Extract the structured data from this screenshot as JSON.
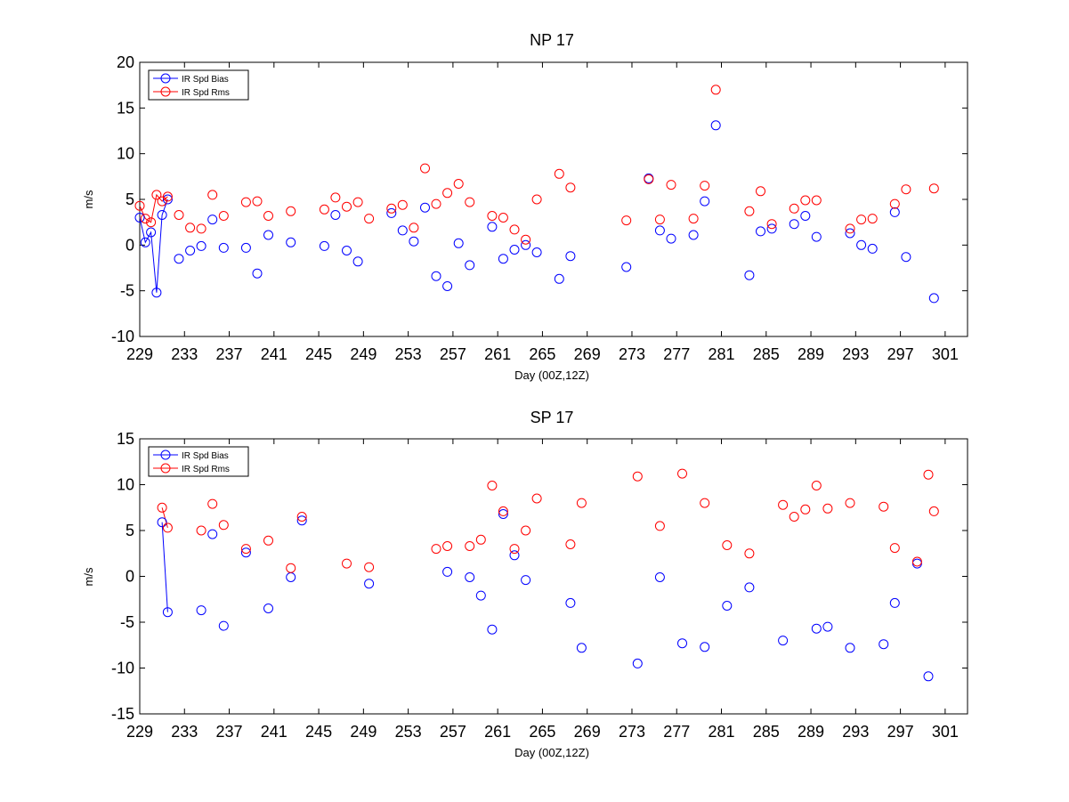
{
  "chart_data": [
    {
      "type": "scatter",
      "title": "NP 17",
      "xlabel": "Day (00Z,12Z)",
      "ylabel": "m/s",
      "xlim": [
        229,
        303
      ],
      "ylim": [
        -10,
        20
      ],
      "xticks": [
        229,
        233,
        237,
        241,
        245,
        249,
        253,
        257,
        261,
        265,
        269,
        273,
        277,
        281,
        285,
        289,
        293,
        297,
        301
      ],
      "yticks": [
        -10,
        -5,
        0,
        5,
        10,
        15,
        20
      ],
      "legend_position": "top-left",
      "grid": false,
      "series": [
        {
          "name": "IR Spd Bias",
          "color": "#0000ff",
          "points": [
            [
              229,
              3
            ],
            [
              229.5,
              0.3
            ],
            [
              230,
              1.4
            ],
            [
              230.5,
              -5.2
            ],
            [
              231,
              3.3
            ],
            [
              231.5,
              5.0
            ],
            [
              232.5,
              -1.5
            ],
            [
              233.5,
              -0.6
            ],
            [
              234.5,
              -0.1
            ],
            [
              235.5,
              2.8
            ],
            [
              236.5,
              -0.3
            ],
            [
              238.5,
              -0.3
            ],
            [
              239.5,
              -3.1
            ],
            [
              240.5,
              1.1
            ],
            [
              242.5,
              0.3
            ],
            [
              245.5,
              -0.1
            ],
            [
              246.5,
              3.3
            ],
            [
              247.5,
              -0.6
            ],
            [
              248.5,
              -1.8
            ],
            [
              251.5,
              3.5
            ],
            [
              252.5,
              1.6
            ],
            [
              253.5,
              0.4
            ],
            [
              254.5,
              4.1
            ],
            [
              255.5,
              -3.4
            ],
            [
              256.5,
              -4.5
            ],
            [
              257.5,
              0.2
            ],
            [
              258.5,
              -2.2
            ],
            [
              260.5,
              2.0
            ],
            [
              261.5,
              -1.5
            ],
            [
              262.5,
              -0.5
            ],
            [
              263.5,
              0
            ],
            [
              264.5,
              -0.8
            ],
            [
              266.5,
              -3.7
            ],
            [
              267.5,
              -1.2
            ],
            [
              272.5,
              -2.4
            ],
            [
              274.5,
              7.3
            ],
            [
              275.5,
              1.6
            ],
            [
              276.5,
              0.7
            ],
            [
              278.5,
              1.1
            ],
            [
              279.5,
              4.8
            ],
            [
              280.5,
              13.1
            ],
            [
              283.5,
              -3.3
            ],
            [
              284.5,
              1.5
            ],
            [
              285.5,
              1.8
            ],
            [
              287.5,
              2.3
            ],
            [
              288.5,
              3.2
            ],
            [
              289.5,
              0.9
            ],
            [
              292.5,
              1.3
            ],
            [
              293.5,
              0
            ],
            [
              294.5,
              -0.4
            ],
            [
              296.5,
              3.6
            ],
            [
              297.5,
              -1.3
            ],
            [
              300,
              -5.8
            ]
          ],
          "line_points": [
            [
              229,
              3
            ],
            [
              229.5,
              0.3
            ],
            [
              230,
              1.4
            ],
            [
              230.5,
              -5.2
            ],
            [
              231,
              3.3
            ],
            [
              231.5,
              5.0
            ]
          ]
        },
        {
          "name": "IR Spd Rms",
          "color": "#ff0000",
          "points": [
            [
              229,
              4.3
            ],
            [
              229.5,
              2.9
            ],
            [
              230,
              2.5
            ],
            [
              230.5,
              5.5
            ],
            [
              231,
              4.8
            ],
            [
              231.5,
              5.3
            ],
            [
              232.5,
              3.3
            ],
            [
              233.5,
              1.9
            ],
            [
              234.5,
              1.8
            ],
            [
              235.5,
              5.5
            ],
            [
              236.5,
              3.2
            ],
            [
              238.5,
              4.7
            ],
            [
              239.5,
              4.8
            ],
            [
              240.5,
              3.2
            ],
            [
              242.5,
              3.7
            ],
            [
              245.5,
              3.9
            ],
            [
              246.5,
              5.2
            ],
            [
              247.5,
              4.2
            ],
            [
              248.5,
              4.7
            ],
            [
              249.5,
              2.9
            ],
            [
              251.5,
              4.0
            ],
            [
              252.5,
              4.4
            ],
            [
              253.5,
              1.9
            ],
            [
              254.5,
              8.4
            ],
            [
              255.5,
              4.5
            ],
            [
              256.5,
              5.7
            ],
            [
              257.5,
              6.7
            ],
            [
              258.5,
              4.7
            ],
            [
              260.5,
              3.2
            ],
            [
              261.5,
              3.0
            ],
            [
              262.5,
              1.7
            ],
            [
              263.5,
              0.6
            ],
            [
              264.5,
              5.0
            ],
            [
              266.5,
              7.8
            ],
            [
              267.5,
              6.3
            ],
            [
              272.5,
              2.7
            ],
            [
              274.5,
              7.2
            ],
            [
              275.5,
              2.8
            ],
            [
              276.5,
              6.6
            ],
            [
              278.5,
              2.9
            ],
            [
              279.5,
              6.5
            ],
            [
              280.5,
              17.0
            ],
            [
              283.5,
              3.7
            ],
            [
              284.5,
              5.9
            ],
            [
              285.5,
              2.3
            ],
            [
              287.5,
              4.0
            ],
            [
              288.5,
              4.9
            ],
            [
              289.5,
              4.9
            ],
            [
              292.5,
              1.8
            ],
            [
              293.5,
              2.8
            ],
            [
              294.5,
              2.9
            ],
            [
              296.5,
              4.5
            ],
            [
              297.5,
              6.1
            ],
            [
              300,
              6.2
            ]
          ],
          "line_points": [
            [
              229,
              4.3
            ],
            [
              229.5,
              2.9
            ],
            [
              230,
              2.5
            ],
            [
              230.5,
              5.5
            ],
            [
              231,
              4.8
            ],
            [
              231.5,
              5.3
            ]
          ]
        }
      ]
    },
    {
      "type": "scatter",
      "title": "SP 17",
      "xlabel": "Day (00Z,12Z)",
      "ylabel": "m/s",
      "xlim": [
        229,
        303
      ],
      "ylim": [
        -15,
        15
      ],
      "xticks": [
        229,
        233,
        237,
        241,
        245,
        249,
        253,
        257,
        261,
        265,
        269,
        273,
        277,
        281,
        285,
        289,
        293,
        297,
        301
      ],
      "yticks": [
        -15,
        -10,
        -5,
        0,
        5,
        10,
        15
      ],
      "legend_position": "top-left",
      "grid": false,
      "series": [
        {
          "name": "IR Spd Bias",
          "color": "#0000ff",
          "points": [
            [
              231,
              5.9
            ],
            [
              231.5,
              -3.9
            ],
            [
              234.5,
              -3.7
            ],
            [
              235.5,
              4.6
            ],
            [
              236.5,
              -5.4
            ],
            [
              238.5,
              2.6
            ],
            [
              240.5,
              -3.5
            ],
            [
              242.5,
              -0.1
            ],
            [
              243.5,
              6.1
            ],
            [
              249.5,
              -0.8
            ],
            [
              256.5,
              0.5
            ],
            [
              258.5,
              -0.1
            ],
            [
              259.5,
              -2.1
            ],
            [
              260.5,
              -5.8
            ],
            [
              261.5,
              6.8
            ],
            [
              262.5,
              2.3
            ],
            [
              263.5,
              -0.4
            ],
            [
              267.5,
              -2.9
            ],
            [
              268.5,
              -7.8
            ],
            [
              273.5,
              -9.5
            ],
            [
              275.5,
              -0.1
            ],
            [
              277.5,
              -7.3
            ],
            [
              279.5,
              -7.7
            ],
            [
              281.5,
              -3.2
            ],
            [
              283.5,
              -1.2
            ],
            [
              286.5,
              -7.0
            ],
            [
              289.5,
              -5.7
            ],
            [
              290.5,
              -5.5
            ],
            [
              292.5,
              -7.8
            ],
            [
              295.5,
              -7.4
            ],
            [
              296.5,
              -2.9
            ],
            [
              298.5,
              1.4
            ],
            [
              299.5,
              -10.9
            ]
          ],
          "line_points": [
            [
              231,
              5.9
            ],
            [
              231.5,
              -3.9
            ]
          ]
        },
        {
          "name": "IR Spd Rms",
          "color": "#ff0000",
          "points": [
            [
              231,
              7.5
            ],
            [
              231.5,
              5.3
            ],
            [
              234.5,
              5.0
            ],
            [
              235.5,
              7.9
            ],
            [
              236.5,
              5.6
            ],
            [
              238.5,
              3.0
            ],
            [
              240.5,
              3.9
            ],
            [
              242.5,
              0.9
            ],
            [
              243.5,
              6.5
            ],
            [
              247.5,
              1.4
            ],
            [
              249.5,
              1.0
            ],
            [
              255.5,
              3.0
            ],
            [
              256.5,
              3.3
            ],
            [
              258.5,
              3.3
            ],
            [
              259.5,
              4.0
            ],
            [
              260.5,
              9.9
            ],
            [
              261.5,
              7.1
            ],
            [
              262.5,
              3.0
            ],
            [
              263.5,
              5.0
            ],
            [
              264.5,
              8.5
            ],
            [
              267.5,
              3.5
            ],
            [
              268.5,
              8.0
            ],
            [
              273.5,
              10.9
            ],
            [
              275.5,
              5.5
            ],
            [
              277.5,
              11.2
            ],
            [
              279.5,
              8.0
            ],
            [
              281.5,
              3.4
            ],
            [
              283.5,
              2.5
            ],
            [
              286.5,
              7.8
            ],
            [
              287.5,
              6.5
            ],
            [
              288.5,
              7.3
            ],
            [
              289.5,
              9.9
            ],
            [
              290.5,
              7.4
            ],
            [
              292.5,
              8.0
            ],
            [
              295.5,
              7.6
            ],
            [
              296.5,
              3.1
            ],
            [
              298.5,
              1.6
            ],
            [
              299.5,
              11.1
            ],
            [
              300,
              7.1
            ]
          ],
          "line_points": [
            [
              231,
              7.5
            ],
            [
              231.5,
              5.3
            ]
          ]
        }
      ]
    }
  ]
}
